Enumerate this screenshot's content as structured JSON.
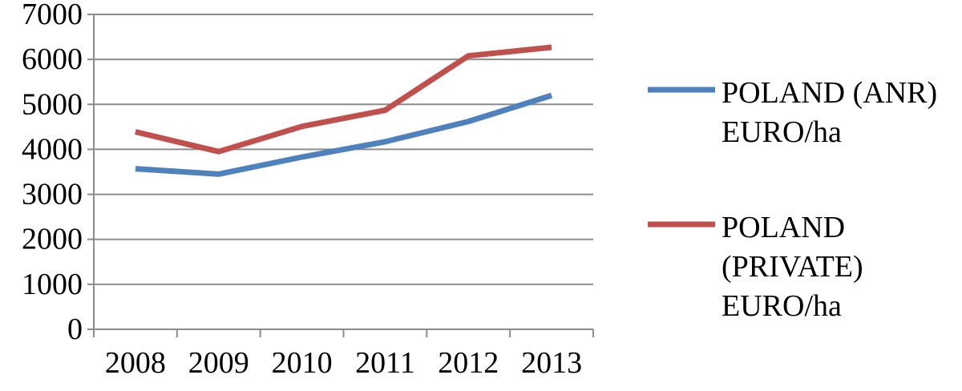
{
  "chart_data": {
    "type": "line",
    "title": "",
    "xlabel": "",
    "ylabel": "",
    "categories": [
      "2008",
      "2009",
      "2010",
      "2011",
      "2012",
      "2013"
    ],
    "ylim": [
      0,
      7000
    ],
    "yticks": [
      0,
      1000,
      2000,
      3000,
      4000,
      5000,
      6000,
      7000
    ],
    "grid": true,
    "legend_position": "right",
    "series": [
      {
        "name": "POLAND (ANR) EURO/ha",
        "legend_lines": [
          "POLAND (ANR)",
          "EURO/ha"
        ],
        "color": "#4F81BD",
        "values": [
          3570,
          3450,
          3830,
          4170,
          4620,
          5200
        ]
      },
      {
        "name": "POLAND (PRIVATE) EURO/ha",
        "legend_lines": [
          "POLAND",
          "(PRIVATE)",
          "EURO/ha"
        ],
        "color": "#C0504D",
        "values": [
          4390,
          3950,
          4510,
          4870,
          6080,
          6270
        ]
      }
    ]
  }
}
